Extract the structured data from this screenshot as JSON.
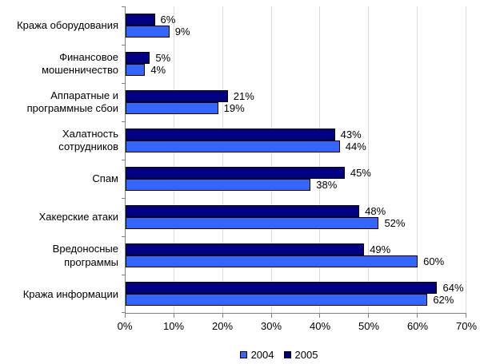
{
  "chart_data": {
    "type": "bar",
    "orientation": "horizontal",
    "categories": [
      "Кража оборудования",
      "Финансовое мошенничество",
      "Аппаратные и программные сбои",
      "Халатность сотрудников",
      "Спам",
      "Хакерские атаки",
      "Вредоносные программы",
      "Кража информации"
    ],
    "series": [
      {
        "name": "2004",
        "color": "#3366FF",
        "values": [
          9,
          4,
          19,
          44,
          38,
          52,
          60,
          62
        ]
      },
      {
        "name": "2005",
        "color": "#000080",
        "values": [
          6,
          5,
          21,
          43,
          45,
          48,
          49,
          64
        ]
      }
    ],
    "series_row_order": [
      "2005",
      "2004"
    ],
    "value_label_suffix": "%",
    "xlim": [
      0,
      70
    ],
    "x_tick_step": 10,
    "x_ticks": [
      "0%",
      "10%",
      "20%",
      "30%",
      "40%",
      "50%",
      "60%",
      "70%"
    ],
    "grid": "vertical",
    "legend_position": "bottom"
  },
  "colors": {
    "background": "#FFFFFF",
    "axis": "#808080",
    "gridline": "#D9D9D9",
    "bar_border": "#000000",
    "text": "#000000"
  }
}
